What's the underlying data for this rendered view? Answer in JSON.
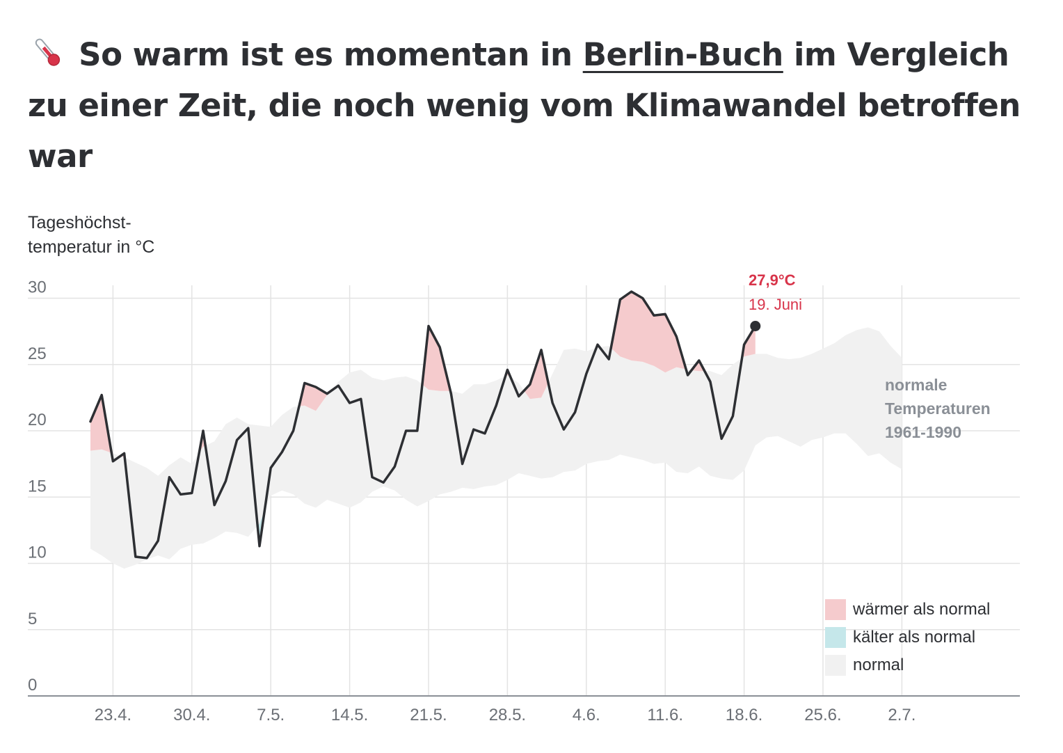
{
  "header": {
    "title_prefix": "So warm ist es momentan in",
    "title_city": "Berlin-Buch",
    "title_suffix": "im Vergleich zu einer Zeit, die noch wenig vom Klimawandel betroffen war",
    "title_icon": "thermometer-icon"
  },
  "colors": {
    "warmer": "#f5cbcd",
    "colder": "#c5e7ea",
    "normal": "#f1f1f1",
    "line": "#2d2f33",
    "accent": "#d8344a"
  },
  "legend": {
    "warmer": "wärmer als normal",
    "colder": "kälter als normal",
    "normal": "normal"
  },
  "normal_label": [
    "normale",
    "Temperaturen",
    "1961-1990"
  ],
  "current": {
    "value": "27,9°C",
    "date": "19. Juni"
  },
  "chart_data": {
    "type": "line",
    "ylabel": [
      "Tageshöchst-",
      "temperatur in °C"
    ],
    "ylim": [
      0,
      30
    ],
    "yticks": [
      0,
      5,
      10,
      15,
      20,
      25,
      30
    ],
    "xtick_labels": [
      "23.4.",
      "30.4.",
      "7.5.",
      "14.5.",
      "21.5.",
      "28.5.",
      "4.6.",
      "11.6.",
      "18.6.",
      "25.6.",
      "2.7."
    ],
    "xtick_days": [
      2,
      9,
      16,
      23,
      30,
      37,
      44,
      51,
      58,
      65,
      72
    ],
    "x_first": "21.4.",
    "grid": true,
    "legend_position": "bottom-right",
    "series": [
      {
        "kind": "observed_max_temperature",
        "values": [
          20.7,
          22.7,
          17.7,
          18.3,
          10.5,
          10.4,
          11.7,
          16.5,
          15.2,
          15.3,
          20.0,
          14.4,
          16.2,
          19.3,
          20.2,
          11.3,
          17.2,
          18.4,
          20.0,
          23.6,
          23.3,
          22.8,
          23.4,
          22.1,
          22.4,
          16.5,
          16.1,
          17.3,
          20.0,
          20.0,
          27.9,
          26.3,
          22.8,
          17.5,
          20.1,
          19.8,
          21.9,
          24.6,
          22.6,
          23.5,
          26.1,
          22.1,
          20.1,
          21.4,
          24.3,
          26.5,
          25.4,
          29.9,
          30.5,
          30.0,
          28.7,
          28.8,
          27.1,
          24.2,
          25.3,
          23.7,
          19.4,
          21.1,
          26.5,
          27.9
        ]
      },
      {
        "kind": "normal_1961_1990_upper",
        "values": [
          18.5,
          18.6,
          18.3,
          18.0,
          17.6,
          17.2,
          16.6,
          17.4,
          18.0,
          17.5,
          18.8,
          19.2,
          20.5,
          21.0,
          20.5,
          20.4,
          20.3,
          21.2,
          21.8,
          21.9,
          21.5,
          22.7,
          23.7,
          24.4,
          24.6,
          24.0,
          23.8,
          24.0,
          24.1,
          23.8,
          23.1,
          23.0,
          23.0,
          22.8,
          23.5,
          23.5,
          23.8,
          24.2,
          23.6,
          22.4,
          22.5,
          24.3,
          26.1,
          26.2,
          26.0,
          26.3,
          26.4,
          25.6,
          25.3,
          25.2,
          24.9,
          24.4,
          24.8,
          24.6,
          24.5,
          24.5,
          24.2,
          25.0,
          25.6,
          25.8,
          25.8,
          25.5,
          25.4,
          25.5,
          25.8,
          26.2,
          26.6,
          27.2,
          27.6,
          27.8,
          27.5,
          26.4,
          25.5
        ],
        "x_start_day": 0
      },
      {
        "kind": "normal_1961_1990_lower",
        "values": [
          11.1,
          10.6,
          10.0,
          9.6,
          9.9,
          10.3,
          10.6,
          10.3,
          11.1,
          11.4,
          11.5,
          11.9,
          12.4,
          12.3,
          12.0,
          13.0,
          15.1,
          15.5,
          15.2,
          14.5,
          14.2,
          14.8,
          14.5,
          14.2,
          14.6,
          15.4,
          15.8,
          15.5,
          14.8,
          14.3,
          14.7,
          15.2,
          15.4,
          15.7,
          15.6,
          15.8,
          15.9,
          16.3,
          16.8,
          16.6,
          16.4,
          16.5,
          16.9,
          17.0,
          17.5,
          17.7,
          17.8,
          18.2,
          18.0,
          17.8,
          17.5,
          17.6,
          16.9,
          16.8,
          17.3,
          16.6,
          16.4,
          16.3,
          17.0,
          18.9,
          19.5,
          19.6,
          19.2,
          18.8,
          19.3,
          19.5,
          19.8,
          19.8,
          19.0,
          18.1,
          18.3,
          17.6,
          17.1
        ],
        "x_start_day": 0
      }
    ]
  }
}
